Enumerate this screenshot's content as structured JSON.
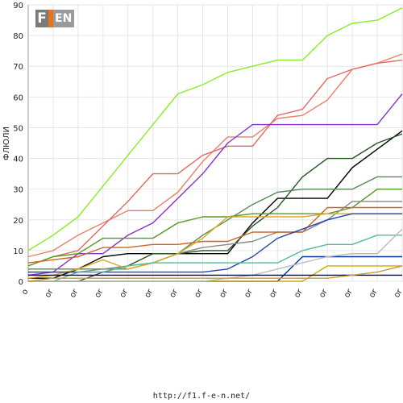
{
  "logo": {
    "text": "F1EN"
  },
  "footer": {
    "url": "http://f1.f-e-n.net/"
  },
  "chart_data": {
    "type": "line",
    "ylabel": "ФЛЮЛИ",
    "xlabel": "",
    "ylim": [
      0,
      90
    ],
    "yticks": [
      0,
      10,
      20,
      30,
      40,
      50,
      60,
      70,
      80,
      90
    ],
    "grid": true,
    "x_tick_labels": [
      "o",
      "or",
      "or",
      "or",
      "or",
      "or",
      "or",
      "or",
      "or",
      "or",
      "or",
      "or",
      "or",
      "or",
      "or",
      "or"
    ],
    "series": [
      {
        "color": "#88ee22",
        "values": [
          10,
          15,
          21,
          31,
          41,
          51,
          61,
          64,
          68,
          70,
          72,
          72,
          80,
          84,
          85,
          89
        ]
      },
      {
        "color": "#e87f6a",
        "values": [
          8,
          10,
          15,
          19,
          23,
          23,
          29,
          39,
          47,
          47,
          53,
          54,
          59,
          69,
          71,
          74
        ]
      },
      {
        "color": "#e06a60",
        "values": [
          5,
          8,
          10,
          18,
          26,
          35,
          35,
          41,
          44,
          44,
          54,
          56,
          66,
          69,
          71,
          72
        ]
      },
      {
        "color": "#8833cc",
        "values": [
          2,
          3,
          9,
          9,
          15,
          19,
          27,
          35,
          45,
          51,
          51,
          51,
          51,
          51,
          51,
          61
        ]
      },
      {
        "color": "#000000",
        "values": [
          1,
          1,
          4,
          8,
          9,
          9,
          9,
          9,
          9,
          19,
          27,
          27,
          27,
          37,
          43,
          49
        ]
      },
      {
        "color": "#225522",
        "values": [
          0,
          0,
          0,
          3,
          5,
          9,
          9,
          10,
          10,
          18,
          24,
          34,
          40,
          40,
          45,
          48
        ]
      },
      {
        "color": "#558855",
        "values": [
          4,
          4,
          4,
          4,
          4,
          6,
          9,
          15,
          20,
          25,
          29,
          30,
          30,
          30,
          34,
          34
        ]
      },
      {
        "color": "#559922",
        "values": [
          5,
          8,
          9,
          14,
          14,
          14,
          19,
          21,
          21,
          22,
          22,
          22,
          22,
          24,
          30,
          30
        ]
      },
      {
        "color": "#888888",
        "values": [
          3,
          3,
          3,
          4,
          5,
          6,
          9,
          11,
          12,
          13,
          16,
          16,
          20,
          26,
          26,
          26
        ]
      },
      {
        "color": "#cc6622",
        "values": [
          6,
          7,
          8,
          11,
          11,
          12,
          12,
          13,
          13,
          16,
          16,
          16,
          24,
          24,
          24,
          24
        ]
      },
      {
        "color": "#ddaa22",
        "values": [
          1,
          2,
          4,
          7,
          4,
          6,
          9,
          14,
          21,
          21,
          21,
          21,
          22,
          22,
          22,
          22
        ]
      },
      {
        "color": "#2244aa",
        "values": [
          3,
          3,
          3,
          3,
          3,
          3,
          3,
          3,
          4,
          8,
          14,
          17,
          20,
          22,
          22,
          22
        ]
      },
      {
        "color": "#55bb99",
        "values": [
          0,
          0,
          3,
          3,
          5,
          6,
          6,
          6,
          6,
          6,
          6,
          10,
          12,
          12,
          15,
          15
        ]
      },
      {
        "color": "#003399",
        "values": [
          0,
          0,
          0,
          0,
          0,
          0,
          0,
          0,
          0,
          0,
          0,
          8,
          8,
          8,
          8,
          8
        ]
      },
      {
        "color": "#ccaa00",
        "values": [
          0,
          0,
          0,
          0,
          0,
          0,
          0,
          0,
          0,
          0,
          0,
          0,
          5,
          5,
          5,
          5
        ]
      },
      {
        "color": "#bbbbbb",
        "values": [
          0,
          0,
          0,
          0,
          0,
          0,
          0,
          0,
          1,
          2,
          4,
          6,
          8,
          9,
          9,
          17
        ]
      },
      {
        "color": "#000088",
        "values": [
          2,
          2,
          2,
          2,
          2,
          2,
          2,
          2,
          2,
          2,
          2,
          2,
          2,
          2,
          2,
          2
        ]
      },
      {
        "color": "#cc9933",
        "values": [
          0,
          1,
          1,
          1,
          1,
          1,
          1,
          1,
          1,
          1,
          1,
          1,
          1,
          2,
          3,
          5
        ]
      }
    ]
  }
}
